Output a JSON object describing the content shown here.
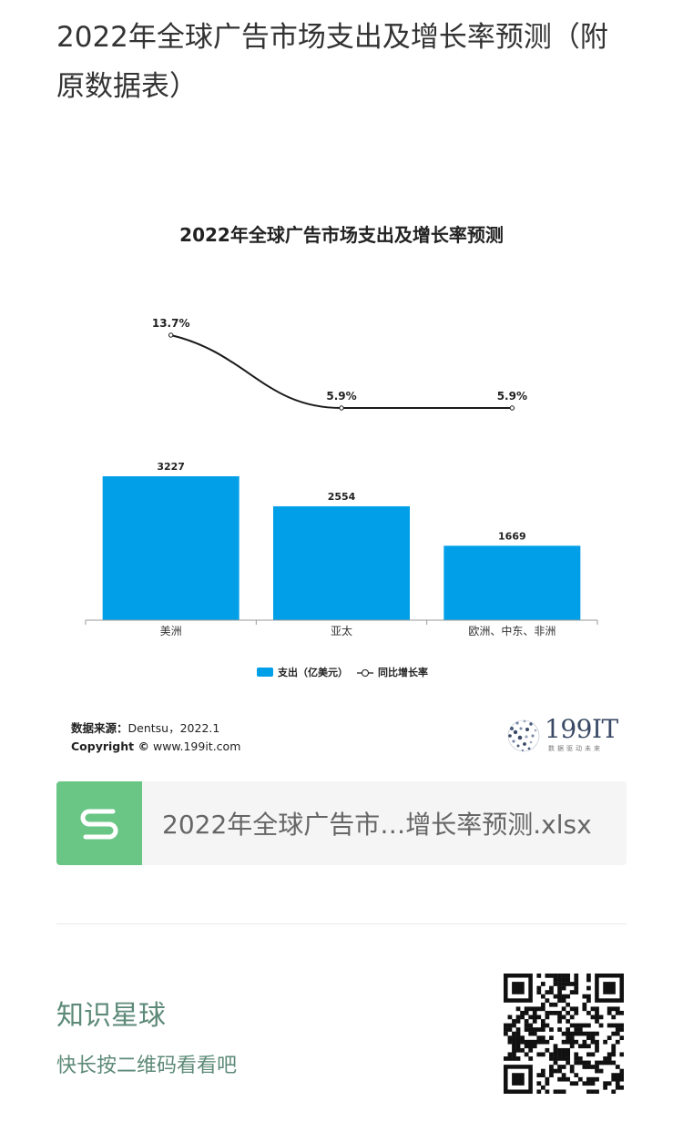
{
  "page": {
    "title": "2022年全球广告市场支出及增长率预测（附原数据表）"
  },
  "chart_data": {
    "type": "bar",
    "title": "2022年全球广告市场支出及增长率预测",
    "categories": [
      "美洲",
      "亚太",
      "欧洲、中东、非洲"
    ],
    "series": [
      {
        "name": "支出（亿美元）",
        "type": "bar",
        "values": [
          3227,
          2554,
          1669
        ],
        "labels": [
          "3227",
          "2554",
          "1669"
        ],
        "color": "#009fe8"
      },
      {
        "name": "同比增长率",
        "type": "line",
        "values": [
          13.7,
          5.9,
          5.9
        ],
        "labels": [
          "13.7%",
          "5.9%",
          "5.9%"
        ],
        "color": "#1a1a1a"
      }
    ],
    "legend_position": "bottom",
    "grid": false
  },
  "source": {
    "label": "数据来源：",
    "value": "Dentsu，2022.1",
    "copyright_label": "Copyright ©",
    "copyright_value": "www.199it.com"
  },
  "logo": {
    "name": "199IT",
    "tagline": "数据驱动未来"
  },
  "file": {
    "icon": "spreadsheet-s-icon",
    "name": "2022年全球广告市…增长率预测.xlsx"
  },
  "planet": {
    "name": "知识星球",
    "subtitle": "快长按二维码看看吧"
  },
  "colors": {
    "bar": "#009fe8",
    "file_icon_bg": "#6ac685",
    "planet_text": "#5d8a78"
  }
}
